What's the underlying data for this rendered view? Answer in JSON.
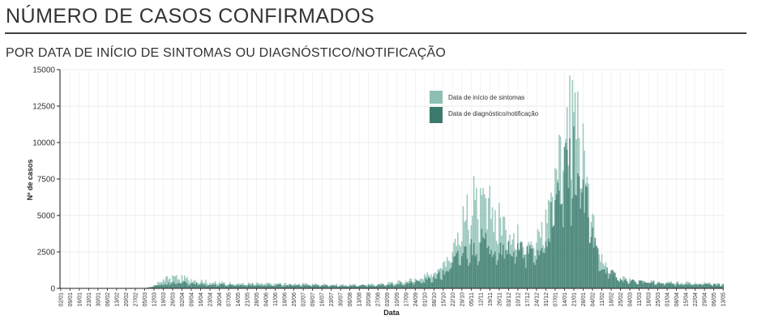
{
  "header": {
    "title": "NÚMERO DE CASOS CONFIRMADOS",
    "subtitle": "POR DATA DE INÍCIO DE SINTOMAS OU DIAGNÓSTICO/NOTIFICAÇÃO"
  },
  "chart_data": {
    "type": "bar",
    "xlabel": "Data",
    "ylabel": "Nº de casos",
    "ylim": [
      0,
      15000
    ],
    "yticks": [
      0,
      2500,
      5000,
      7500,
      10000,
      12500,
      15000
    ],
    "ytick_labels": [
      "0",
      "2500",
      "5000",
      "7500",
      "10000",
      "12500",
      "15000"
    ],
    "x_start": "2020-01-02",
    "x_end": "2021-05-13",
    "xtick_labels": [
      "02/01",
      "09/01",
      "16/01",
      "23/01",
      "30/01",
      "06/02",
      "13/02",
      "20/02",
      "27/02",
      "05/03",
      "12/03",
      "19/03",
      "26/03",
      "02/04",
      "09/04",
      "16/04",
      "23/04",
      "30/04",
      "07/05",
      "14/05",
      "21/05",
      "28/05",
      "04/06",
      "11/06",
      "18/06",
      "25/06",
      "02/07",
      "09/07",
      "16/07",
      "23/07",
      "30/07",
      "06/08",
      "13/08",
      "20/08",
      "27/08",
      "03/09",
      "10/09",
      "17/09",
      "24/09",
      "01/10",
      "08/10",
      "15/10",
      "22/10",
      "29/10",
      "05/11",
      "12/11",
      "19/11",
      "26/11",
      "03/12",
      "10/12",
      "17/12",
      "24/12",
      "31/12",
      "07/01",
      "14/01",
      "21/01",
      "28/01",
      "04/02",
      "11/02",
      "18/02",
      "25/02",
      "04/03",
      "11/03",
      "18/03",
      "25/03",
      "01/04",
      "08/04",
      "15/04",
      "22/04",
      "29/04",
      "06/05",
      "13/05"
    ],
    "grid": true,
    "legend_position": "top-right (inside plot)",
    "series": [
      {
        "name": "Data de início de sintomas",
        "color": "#8dbfb3",
        "keypoints": [
          [
            "2020-01-02",
            0
          ],
          [
            "2020-03-05",
            0
          ],
          [
            "2020-03-12",
            150
          ],
          [
            "2020-03-19",
            650
          ],
          [
            "2020-03-26",
            800
          ],
          [
            "2020-04-09",
            650
          ],
          [
            "2020-04-23",
            420
          ],
          [
            "2020-05-14",
            330
          ],
          [
            "2020-06-11",
            330
          ],
          [
            "2020-07-09",
            300
          ],
          [
            "2020-08-06",
            230
          ],
          [
            "2020-08-27",
            280
          ],
          [
            "2020-09-17",
            520
          ],
          [
            "2020-10-01",
            800
          ],
          [
            "2020-10-15",
            1700
          ],
          [
            "2020-10-22",
            3000
          ],
          [
            "2020-10-29",
            4300
          ],
          [
            "2020-11-05",
            5800
          ],
          [
            "2020-11-12",
            5500
          ],
          [
            "2020-11-19",
            5600
          ],
          [
            "2020-11-26",
            4800
          ],
          [
            "2020-12-03",
            4300
          ],
          [
            "2020-12-10",
            3600
          ],
          [
            "2020-12-17",
            3700
          ],
          [
            "2020-12-24",
            3200
          ],
          [
            "2020-12-31",
            4800
          ],
          [
            "2021-01-07",
            8500
          ],
          [
            "2021-01-14",
            10500
          ],
          [
            "2021-01-21",
            12800
          ],
          [
            "2021-01-28",
            9000
          ],
          [
            "2021-02-04",
            4500
          ],
          [
            "2021-02-11",
            2000
          ],
          [
            "2021-02-18",
            1000
          ],
          [
            "2021-02-25",
            700
          ],
          [
            "2021-03-11",
            450
          ],
          [
            "2021-04-08",
            400
          ],
          [
            "2021-05-13",
            300
          ]
        ],
        "peaks": [
          [
            "2020-11-07",
            7700
          ],
          [
            "2020-11-18",
            6200
          ],
          [
            "2021-01-18",
            14600
          ],
          [
            "2021-01-20",
            14300
          ],
          [
            "2021-01-24",
            13500
          ]
        ]
      },
      {
        "name": "Data de diagnóstico/notificação",
        "color": "#3d7a6e",
        "keypoints": [
          [
            "2020-01-02",
            0
          ],
          [
            "2020-03-05",
            0
          ],
          [
            "2020-03-19",
            300
          ],
          [
            "2020-04-02",
            400
          ],
          [
            "2020-04-23",
            250
          ],
          [
            "2020-06-11",
            220
          ],
          [
            "2020-07-30",
            180
          ],
          [
            "2020-08-27",
            200
          ],
          [
            "2020-09-17",
            350
          ],
          [
            "2020-10-01",
            500
          ],
          [
            "2020-10-15",
            1000
          ],
          [
            "2020-10-29",
            2400
          ],
          [
            "2020-11-12",
            3200
          ],
          [
            "2020-11-26",
            3000
          ],
          [
            "2020-12-10",
            2600
          ],
          [
            "2020-12-24",
            2300
          ],
          [
            "2020-12-31",
            3300
          ],
          [
            "2021-01-07",
            5500
          ],
          [
            "2021-01-14",
            7500
          ],
          [
            "2021-01-21",
            8800
          ],
          [
            "2021-01-28",
            6800
          ],
          [
            "2021-02-04",
            3500
          ],
          [
            "2021-02-11",
            1600
          ],
          [
            "2021-02-25",
            600
          ],
          [
            "2021-03-25",
            350
          ],
          [
            "2021-05-13",
            250
          ]
        ]
      }
    ]
  }
}
